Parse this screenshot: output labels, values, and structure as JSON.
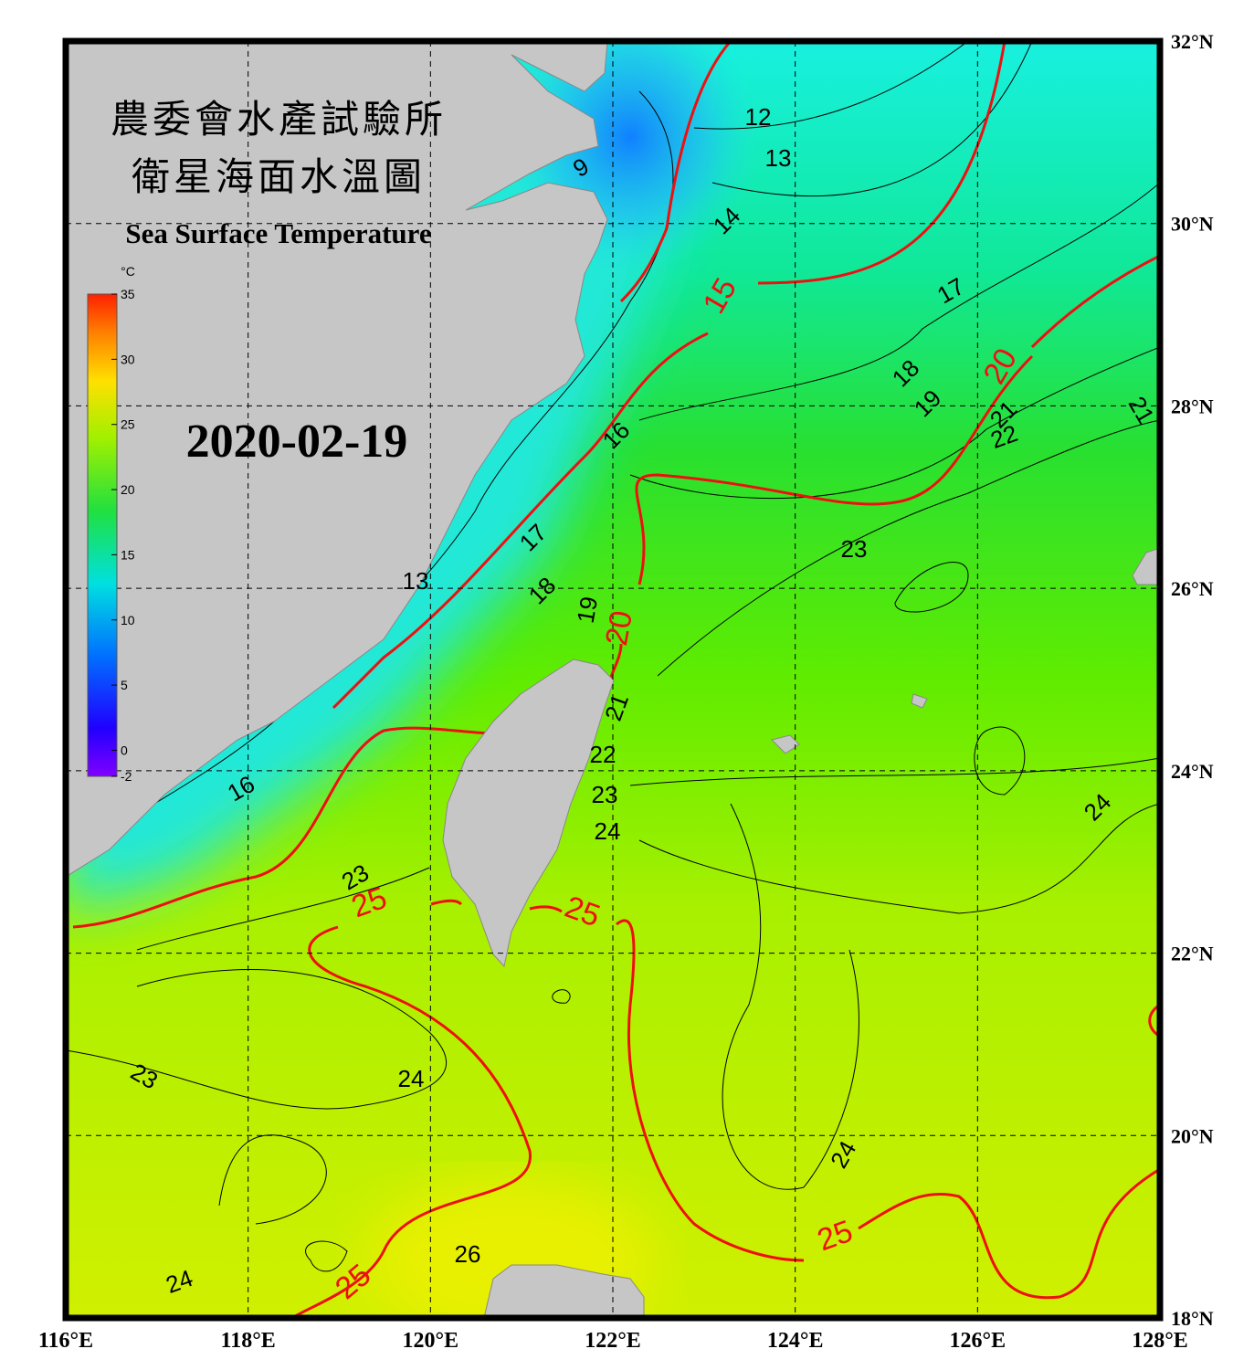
{
  "title": [
    "農委會水產試驗所",
    "衛星海面水溫圖"
  ],
  "subtitle": "Sea Surface Temperature",
  "date": "2020-02-19",
  "colorbar": {
    "unit": "°C",
    "lim": [
      -2,
      35
    ],
    "ticks": [
      35,
      30,
      25,
      20,
      15,
      10,
      5,
      0,
      -2
    ]
  },
  "lon_ticks": [
    {
      "value": 116,
      "label": "116°E"
    },
    {
      "value": 118,
      "label": "118°E"
    },
    {
      "value": 120,
      "label": "120°E"
    },
    {
      "value": 122,
      "label": "122°E"
    },
    {
      "value": 124,
      "label": "124°E"
    },
    {
      "value": 126,
      "label": "126°E"
    },
    {
      "value": 128,
      "label": "128°E"
    }
  ],
  "lat_ticks": [
    {
      "value": 32,
      "label": "32°N"
    },
    {
      "value": 30,
      "label": "30°N"
    },
    {
      "value": 28,
      "label": "28°N"
    },
    {
      "value": 26,
      "label": "26°N"
    },
    {
      "value": 24,
      "label": "24°N"
    },
    {
      "value": 22,
      "label": "22°N"
    },
    {
      "value": 20,
      "label": "20°N"
    },
    {
      "value": 18,
      "label": "18°N"
    }
  ],
  "lon_lim": [
    116,
    128
  ],
  "lat_lim": [
    18,
    32
  ],
  "contour_labels": [
    9,
    12,
    13,
    14,
    15,
    17,
    18,
    19,
    20,
    21,
    22,
    21,
    16,
    17,
    18,
    19,
    20,
    21,
    22,
    23,
    24,
    23,
    13,
    16,
    23,
    25,
    25,
    24,
    23,
    24,
    24,
    25,
    26,
    24,
    25
  ]
}
